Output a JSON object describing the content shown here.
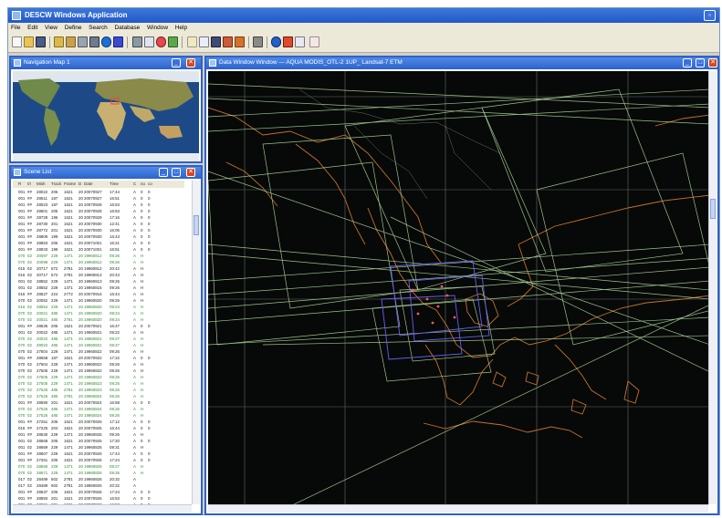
{
  "app": {
    "title": "DESCW Windows Application"
  },
  "menu": [
    "File",
    "Edit",
    "View",
    "Define",
    "Search",
    "Database",
    "Window",
    "Help"
  ],
  "panes": {
    "navigation_title": "Navigation Map 1",
    "scene_list_title": "Scene List",
    "map_title": "Data Window Window — AQUA MODIS_OTL-2 1UP_ Landsat-7 ETM"
  },
  "scene_list": {
    "headers": [
      "R",
      "I/I",
      "Mish",
      "Track",
      "Frame",
      "D",
      "Date",
      "Time",
      "C",
      "no",
      "co"
    ],
    "rows": [
      [
        "001",
        "##",
        "28022",
        "206",
        "1621",
        "20",
        "20070927",
        "17:44",
        "A",
        "0",
        "0"
      ],
      [
        "001",
        "##",
        "28511",
        "187",
        "1621",
        "20",
        "20070927",
        "16:51",
        "A",
        "0",
        "0"
      ],
      [
        "001",
        "##",
        "28023",
        "187",
        "1621",
        "20",
        "20070928",
        "16:53",
        "A",
        "0",
        "0"
      ],
      [
        "001",
        "##",
        "28601",
        "205",
        "1621",
        "20",
        "20070928",
        "16:53",
        "A",
        "0",
        "0"
      ],
      [
        "001",
        "##",
        "28729",
        "196",
        "1621",
        "20",
        "20070929",
        "17:16",
        "A",
        "0",
        "0"
      ],
      [
        "001",
        "##",
        "28730",
        "201",
        "1621",
        "20",
        "20070930",
        "12:41",
        "A",
        "0",
        "0"
      ],
      [
        "001",
        "##",
        "28772",
        "201",
        "1621",
        "20",
        "20070930",
        "16:05",
        "A",
        "0",
        "0"
      ],
      [
        "001",
        "##",
        "28809",
        "199",
        "1621",
        "20",
        "20070930",
        "16:43",
        "A",
        "0",
        "0"
      ],
      [
        "001",
        "##",
        "28853",
        "206",
        "1621",
        "20",
        "20071001",
        "16:21",
        "A",
        "0",
        "0"
      ],
      [
        "001",
        "##",
        "28933",
        "199",
        "1621",
        "20",
        "20071001",
        "16:51",
        "A",
        "0",
        "0"
      ],
      [
        "070",
        "02",
        "20097",
        "229",
        "1471",
        "20",
        "19960812",
        "09:26",
        "A",
        "H",
        ""
      ],
      [
        "070",
        "02",
        "20098",
        "229",
        "1471",
        "20",
        "19960812",
        "09:26",
        "A",
        "H",
        ""
      ],
      [
        "015",
        "02",
        "20717",
        "572",
        "2781",
        "20",
        "19960812",
        "20:42",
        "A",
        "H",
        ""
      ],
      [
        "016",
        "02",
        "20717",
        "572",
        "2781",
        "20",
        "19960813",
        "20:43",
        "A",
        "H",
        ""
      ],
      [
        "001",
        "02",
        "28552",
        "229",
        "1471",
        "20",
        "19960813",
        "09:26",
        "A",
        "H",
        ""
      ],
      [
        "001",
        "02",
        "28552",
        "229",
        "1471",
        "20",
        "19960815",
        "09:26",
        "A",
        "H",
        ""
      ],
      [
        "016",
        "##",
        "28527",
        "224",
        "2772",
        "20",
        "20070916",
        "16:44",
        "A",
        "H",
        ""
      ],
      [
        "070",
        "02",
        "20052",
        "229",
        "1471",
        "20",
        "19960820",
        "09:26",
        "A",
        "H",
        ""
      ],
      [
        "016",
        "02",
        "28554",
        "229",
        "1471",
        "20",
        "19960820",
        "09:24",
        "A",
        "H",
        ""
      ],
      [
        "070",
        "02",
        "20021",
        "485",
        "1471",
        "20",
        "19960820",
        "09:24",
        "A",
        "H",
        ""
      ],
      [
        "070",
        "02",
        "20021",
        "485",
        "2781",
        "20",
        "19960820",
        "09:24",
        "A",
        "H",
        ""
      ],
      [
        "001",
        "##",
        "28635",
        "205",
        "1621",
        "20",
        "20070921",
        "16:47",
        "A",
        "0",
        "0"
      ],
      [
        "001",
        "02",
        "20022",
        "485",
        "1471",
        "20",
        "19960821",
        "09:22",
        "A",
        "H",
        ""
      ],
      [
        "070",
        "02",
        "20022",
        "485",
        "1471",
        "20",
        "19960821",
        "09:27",
        "A",
        "H",
        ""
      ],
      [
        "070",
        "02",
        "28022",
        "485",
        "1471",
        "20",
        "19960821",
        "09:27",
        "A",
        "H",
        ""
      ],
      [
        "070",
        "02",
        "27504",
        "229",
        "1471",
        "20",
        "19960822",
        "09:26",
        "A",
        "H",
        ""
      ],
      [
        "001",
        "##",
        "28658",
        "187",
        "1621",
        "20",
        "20070922",
        "17:22",
        "A",
        "0",
        "0"
      ],
      [
        "070",
        "02",
        "27504",
        "229",
        "1471",
        "20",
        "19960822",
        "09:26",
        "A",
        "H",
        ""
      ],
      [
        "070",
        "02",
        "27506",
        "229",
        "1471",
        "20",
        "19960822",
        "09:26",
        "A",
        "H",
        ""
      ],
      [
        "070",
        "02",
        "27505",
        "229",
        "1471",
        "20",
        "19960822",
        "09:26",
        "A",
        "H",
        ""
      ],
      [
        "070",
        "02",
        "27505",
        "229",
        "1471",
        "20",
        "19960823",
        "09:26",
        "A",
        "H",
        ""
      ],
      [
        "070",
        "02",
        "27526",
        "485",
        "2781",
        "20",
        "19960823",
        "09:26",
        "A",
        "H",
        ""
      ],
      [
        "070",
        "02",
        "27526",
        "485",
        "2781",
        "20",
        "19960824",
        "09:26",
        "A",
        "H",
        ""
      ],
      [
        "001",
        "##",
        "28690",
        "201",
        "1621",
        "20",
        "20070924",
        "16:58",
        "A",
        "0",
        "0"
      ],
      [
        "070",
        "02",
        "27526",
        "485",
        "1471",
        "20",
        "19960824",
        "09:26",
        "A",
        "H",
        ""
      ],
      [
        "070",
        "02",
        "27526",
        "485",
        "1471",
        "20",
        "19960824",
        "09:26",
        "A",
        "H",
        ""
      ],
      [
        "001",
        "##",
        "27251",
        "206",
        "1621",
        "20",
        "20070925",
        "17:12",
        "A",
        "0",
        "0"
      ],
      [
        "016",
        "##",
        "27225",
        "204",
        "1621",
        "20",
        "20070925",
        "16:44",
        "A",
        "0",
        "0"
      ],
      [
        "001",
        "##",
        "28630",
        "229",
        "1471",
        "20",
        "19960825",
        "09:26",
        "A",
        "H",
        ""
      ],
      [
        "001",
        "02",
        "28568",
        "205",
        "1621",
        "20",
        "20070925",
        "17:20",
        "A",
        "0",
        "0"
      ],
      [
        "001",
        "02",
        "28569",
        "229",
        "1471",
        "20",
        "19960825",
        "09:31",
        "A",
        "H",
        ""
      ],
      [
        "001",
        "##",
        "28607",
        "229",
        "1621",
        "20",
        "20070926",
        "17:44",
        "A",
        "0",
        "0"
      ],
      [
        "001",
        "##",
        "27261",
        "206",
        "1621",
        "20",
        "20070926",
        "17:24",
        "A",
        "0",
        "0"
      ],
      [
        "070",
        "02",
        "28569",
        "229",
        "1471",
        "20",
        "19960826",
        "09:27",
        "A",
        "H",
        ""
      ],
      [
        "070",
        "02",
        "28571",
        "229",
        "1471",
        "20",
        "19960826",
        "09:26",
        "A",
        "H",
        ""
      ],
      [
        "017",
        "02",
        "28489",
        "502",
        "2781",
        "20",
        "19960826",
        "20:32",
        "A",
        "",
        ""
      ],
      [
        "017",
        "02",
        "28489",
        "502",
        "2781",
        "20",
        "19960826",
        "20:32",
        "A",
        "",
        ""
      ],
      [
        "001",
        "##",
        "28637",
        "206",
        "1621",
        "20",
        "20070926",
        "17:24",
        "A",
        "0",
        "0"
      ],
      [
        "001",
        "##",
        "28593",
        "201",
        "1621",
        "20",
        "20070926",
        "16:53",
        "A",
        "0",
        "0"
      ],
      [
        "001",
        "##",
        "28591",
        "201",
        "1621",
        "20",
        "20070927",
        "16:53",
        "A",
        "0",
        "0"
      ]
    ],
    "highlight_rows": [
      10,
      11,
      18,
      19,
      20,
      23,
      24,
      29,
      30,
      31,
      32,
      34,
      35,
      43,
      44
    ]
  },
  "colors": {
    "footprint_green": "#b8e0a0",
    "coastline": "#c8702a",
    "grid": "#9fa6a0",
    "selected_footprint": "#6a5ef0"
  }
}
